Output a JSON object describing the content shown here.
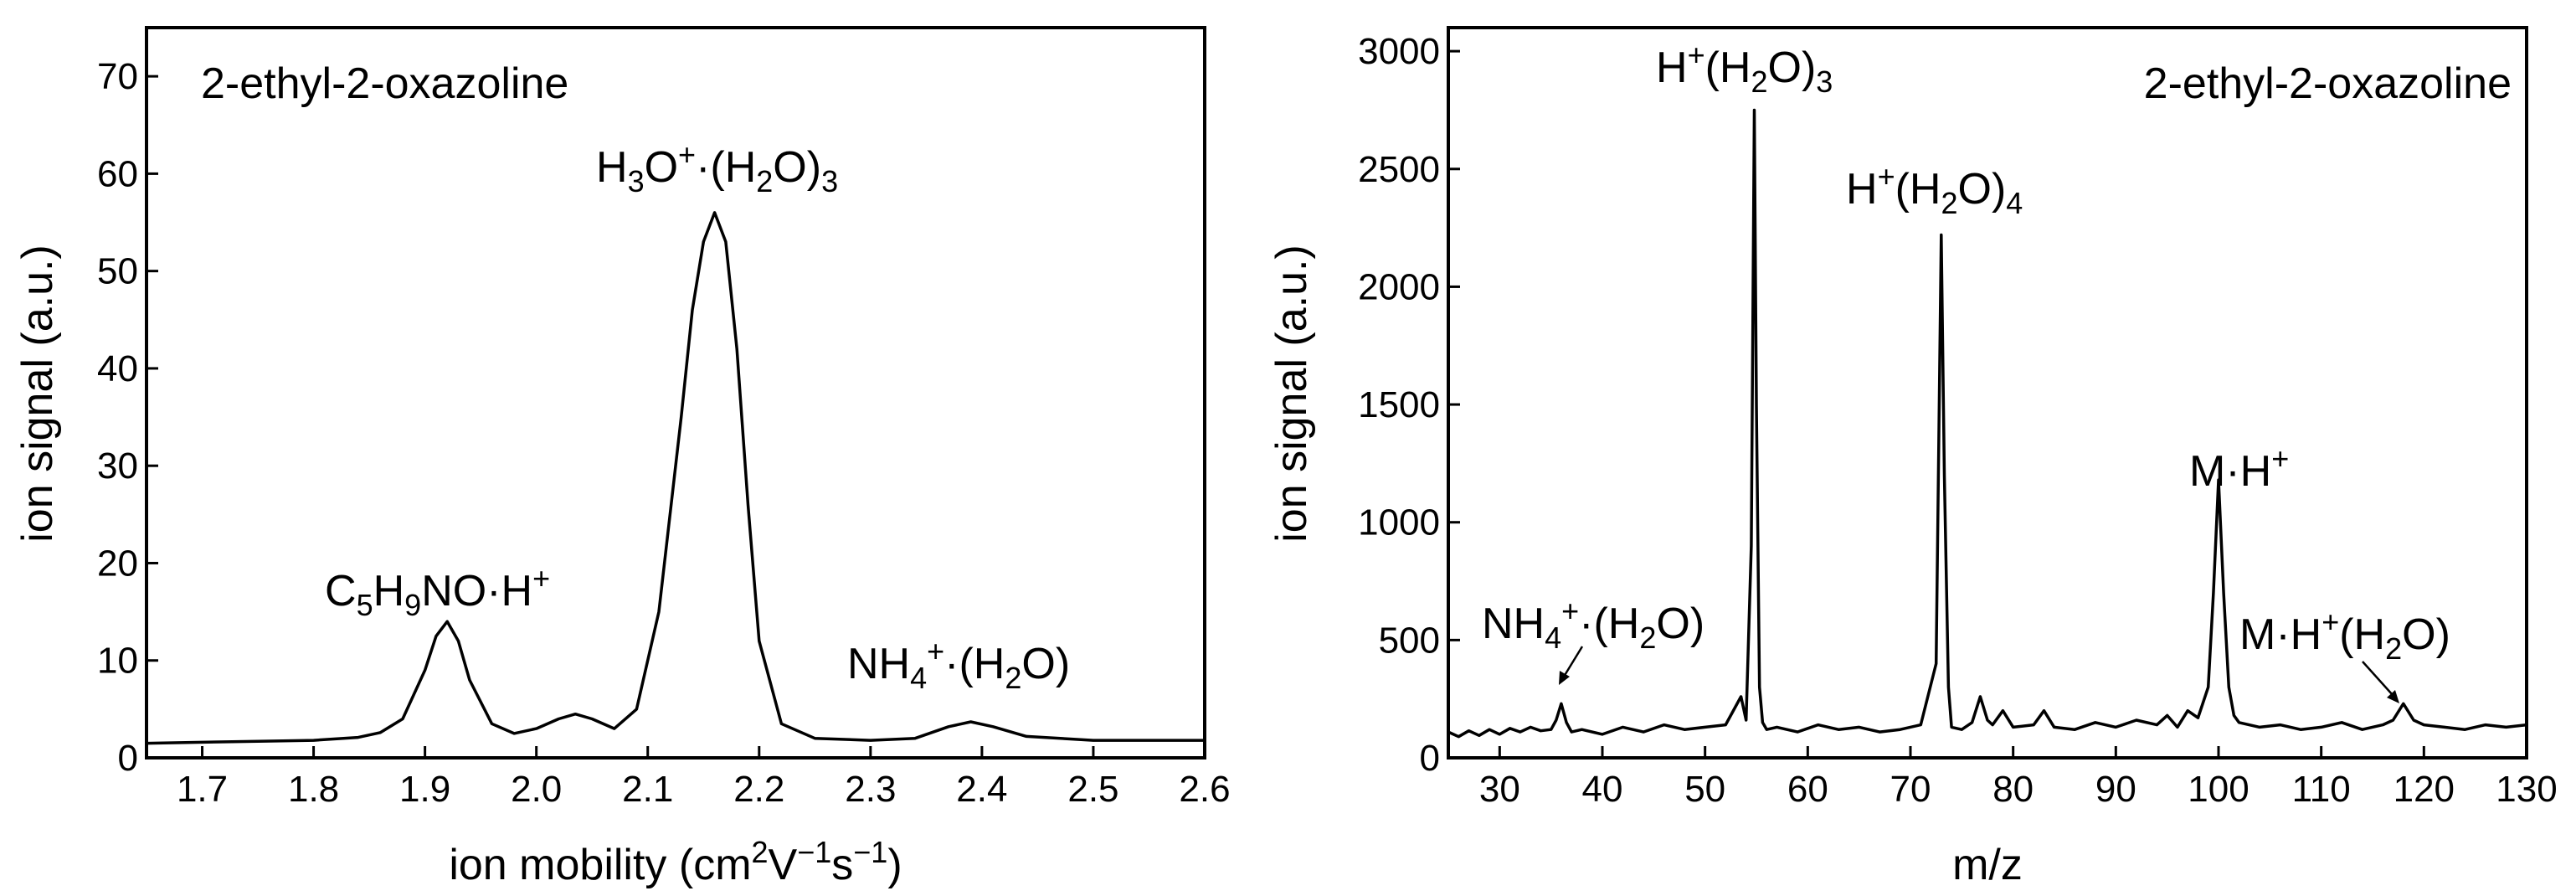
{
  "chart_data": [
    {
      "type": "line",
      "inset_label": "2-ethyl-2-oxazoline",
      "xlabel": "ion mobility (cm²V⁻¹s⁻¹)",
      "ylabel": "ion signal (a.u.)",
      "xlim": [
        1.65,
        2.6
      ],
      "ylim": [
        0,
        75
      ],
      "xticks": [
        "1.7",
        "1.8",
        "1.9",
        "2.0",
        "2.1",
        "2.2",
        "2.3",
        "2.4",
        "2.5",
        "2.6"
      ],
      "yticks": [
        "0",
        "10",
        "20",
        "30",
        "40",
        "50",
        "60",
        "70"
      ],
      "x": [
        1.65,
        1.7,
        1.75,
        1.8,
        1.84,
        1.86,
        1.88,
        1.9,
        1.91,
        1.92,
        1.93,
        1.94,
        1.96,
        1.98,
        2.0,
        2.02,
        2.035,
        2.05,
        2.07,
        2.09,
        2.11,
        2.13,
        2.14,
        2.15,
        2.16,
        2.17,
        2.18,
        2.19,
        2.2,
        2.22,
        2.25,
        2.3,
        2.34,
        2.37,
        2.39,
        2.41,
        2.44,
        2.5,
        2.55,
        2.6
      ],
      "y": [
        1.5,
        1.6,
        1.7,
        1.8,
        2.1,
        2.6,
        4.0,
        9.0,
        12.5,
        14.0,
        12.0,
        8.0,
        3.5,
        2.5,
        3.0,
        4.0,
        4.5,
        4.0,
        3.0,
        5.0,
        15.0,
        35.0,
        46.0,
        53.0,
        56.0,
        53.0,
        42.0,
        26.0,
        12.0,
        3.5,
        2.0,
        1.8,
        2.0,
        3.2,
        3.7,
        3.2,
        2.2,
        1.8,
        1.8,
        1.8
      ],
      "annotations": [
        {
          "label": "C5H9NO·H+",
          "x": 1.92,
          "y": 14
        },
        {
          "label": "H3O+·(H2O)3",
          "x": 2.16,
          "y": 56
        },
        {
          "label": "NH4+·(H2O)",
          "x": 2.39,
          "y": 3.7
        }
      ]
    },
    {
      "type": "line",
      "inset_label": "2-ethyl-2-oxazoline",
      "xlabel": "m/z",
      "ylabel": "ion signal (a.u.)",
      "xlim": [
        25,
        130
      ],
      "ylim": [
        0,
        3100
      ],
      "xticks": [
        "30",
        "40",
        "50",
        "60",
        "70",
        "80",
        "90",
        "100",
        "110",
        "120",
        "130"
      ],
      "yticks": [
        "0",
        "500",
        "1000",
        "1500",
        "2000",
        "2500",
        "3000"
      ],
      "x": [
        25,
        26,
        27,
        28,
        29,
        30,
        31,
        32,
        33,
        34,
        35,
        35.5,
        36,
        36.5,
        37,
        38,
        40,
        42,
        44,
        46,
        48,
        50,
        52,
        53.5,
        54,
        54.5,
        54.8,
        55,
        55.3,
        55.6,
        56,
        57,
        59,
        61,
        63,
        65,
        67,
        69,
        71,
        72.5,
        73,
        73.3,
        73.7,
        74,
        75,
        76,
        76.8,
        77.5,
        78,
        79,
        80,
        82,
        83,
        84,
        86,
        88,
        90,
        92,
        94,
        95,
        96,
        97,
        98,
        99,
        99.5,
        100,
        100.5,
        101,
        101.5,
        102,
        104,
        106,
        108,
        110,
        112,
        114,
        116,
        117,
        118,
        119,
        120,
        122,
        124,
        126,
        128,
        130
      ],
      "y": [
        110,
        90,
        115,
        95,
        120,
        100,
        125,
        110,
        130,
        115,
        120,
        160,
        230,
        150,
        110,
        120,
        100,
        130,
        110,
        140,
        120,
        130,
        140,
        260,
        160,
        900,
        2750,
        1500,
        300,
        150,
        120,
        130,
        110,
        140,
        120,
        130,
        110,
        120,
        140,
        400,
        2220,
        1200,
        300,
        130,
        120,
        150,
        260,
        160,
        140,
        200,
        130,
        140,
        200,
        130,
        120,
        150,
        130,
        160,
        140,
        180,
        130,
        200,
        170,
        300,
        700,
        1180,
        700,
        300,
        180,
        150,
        130,
        140,
        120,
        130,
        150,
        120,
        140,
        160,
        230,
        160,
        140,
        130,
        120,
        140,
        130,
        140
      ],
      "annotations": [
        {
          "label": "H+(H2O)3",
          "x": 54.8,
          "y": 2750
        },
        {
          "label": "H+(H2O)4",
          "x": 73,
          "y": 2220
        },
        {
          "label": "M·H+",
          "x": 100,
          "y": 1180
        },
        {
          "label": "NH4+·(H2O)",
          "x": 36,
          "y": 230
        },
        {
          "label": "M·H+(H2O)",
          "x": 118,
          "y": 230
        }
      ]
    }
  ],
  "text": {
    "left_inset": "2-ethyl-2-oxazoline",
    "right_inset": "2-ethyl-2-oxazoline",
    "left_xlabel_pre": "ion mobility (cm",
    "left_xlabel_sup1": "2",
    "left_xlabel_mid": "V",
    "left_xlabel_sup2": "−1",
    "left_xlabel_mid2": "s",
    "left_xlabel_sup3": "−1",
    "left_xlabel_post": ")",
    "left_ylabel": "ion signal (a.u.)",
    "right_xlabel": "m/z",
    "right_ylabel": "ion signal (a.u.)"
  }
}
